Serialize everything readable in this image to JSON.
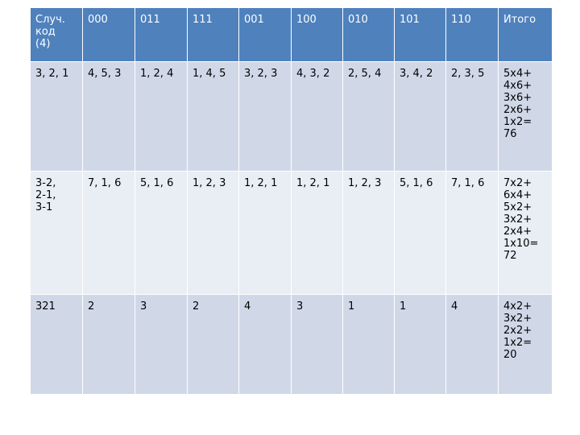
{
  "table": {
    "header": [
      "Случ.\nкод\n(4)",
      "000",
      "011",
      "111",
      "001",
      "100",
      "010",
      "101",
      "110",
      "Итого"
    ],
    "rows": [
      [
        "3, 2, 1",
        "4, 5, 3",
        "1, 2, 4",
        "1, 4, 5",
        "3, 2, 3",
        "4, 3, 2",
        "2, 5, 4",
        "3, 4, 2",
        "2, 3, 5",
        "5х4+\n4х6+\n3х6+\n2х6+\n1х2=\n76"
      ],
      [
        "3-2,\n2-1,\n3-1",
        "7, 1, 6",
        "5, 1, 6",
        "1, 2, 3",
        "1, 2, 1",
        "1, 2, 1",
        "1, 2, 3",
        "5, 1, 6",
        "7, 1, 6",
        "7х2+\n6х4+\n5х2+\n3х2+\n2х4+\n1х10=\n72"
      ],
      [
        "321",
        "2",
        "3",
        "2",
        "4",
        "3",
        "1",
        "1",
        "4",
        "4х2+\n3х2+\n2х2+\n1х2=\n20"
      ]
    ]
  }
}
